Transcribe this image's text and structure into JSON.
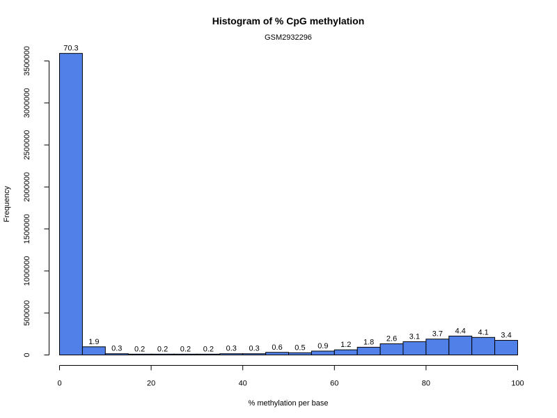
{
  "chart_data": {
    "type": "bar",
    "title": "Histogram of % CpG methylation",
    "subtitle": "GSM2932296",
    "xlabel": "% methylation per base",
    "ylabel": "Frequency",
    "bar_color": "#5181E8",
    "bin_width": 5,
    "xlim": [
      0,
      100
    ],
    "ylim": [
      0,
      3600000
    ],
    "x_ticks": [
      0,
      20,
      40,
      60,
      80,
      100
    ],
    "y_ticks": [
      0,
      500000,
      1000000,
      1500000,
      2000000,
      2500000,
      3000000,
      3500000
    ],
    "x_tick_labels": [
      "0",
      "20",
      "40",
      "60",
      "80",
      "100"
    ],
    "y_tick_labels": [
      "0",
      "500000",
      "1000000",
      "1500000",
      "2000000",
      "2500000",
      "3000000",
      "3500000"
    ],
    "bins": [
      {
        "x0": 0,
        "x1": 5,
        "value": 3590000,
        "label": "70.3"
      },
      {
        "x0": 5,
        "x1": 10,
        "value": 97000,
        "label": "1.9"
      },
      {
        "x0": 10,
        "x1": 15,
        "value": 15000,
        "label": "0.3"
      },
      {
        "x0": 15,
        "x1": 20,
        "value": 10000,
        "label": "0.2"
      },
      {
        "x0": 20,
        "x1": 25,
        "value": 10000,
        "label": "0.2"
      },
      {
        "x0": 25,
        "x1": 30,
        "value": 10000,
        "label": "0.2"
      },
      {
        "x0": 30,
        "x1": 35,
        "value": 10000,
        "label": "0.2"
      },
      {
        "x0": 35,
        "x1": 40,
        "value": 15000,
        "label": "0.3"
      },
      {
        "x0": 40,
        "x1": 45,
        "value": 15000,
        "label": "0.3"
      },
      {
        "x0": 45,
        "x1": 50,
        "value": 31000,
        "label": "0.6"
      },
      {
        "x0": 50,
        "x1": 55,
        "value": 26000,
        "label": "0.5"
      },
      {
        "x0": 55,
        "x1": 60,
        "value": 46000,
        "label": "0.9"
      },
      {
        "x0": 60,
        "x1": 65,
        "value": 61000,
        "label": "1.2"
      },
      {
        "x0": 65,
        "x1": 70,
        "value": 92000,
        "label": "1.8"
      },
      {
        "x0": 70,
        "x1": 75,
        "value": 133000,
        "label": "2.6"
      },
      {
        "x0": 75,
        "x1": 80,
        "value": 158000,
        "label": "3.1"
      },
      {
        "x0": 80,
        "x1": 85,
        "value": 189000,
        "label": "3.7"
      },
      {
        "x0": 85,
        "x1": 90,
        "value": 225000,
        "label": "4.4"
      },
      {
        "x0": 90,
        "x1": 95,
        "value": 209000,
        "label": "4.1"
      },
      {
        "x0": 95,
        "x1": 100,
        "value": 174000,
        "label": "3.4"
      }
    ]
  }
}
